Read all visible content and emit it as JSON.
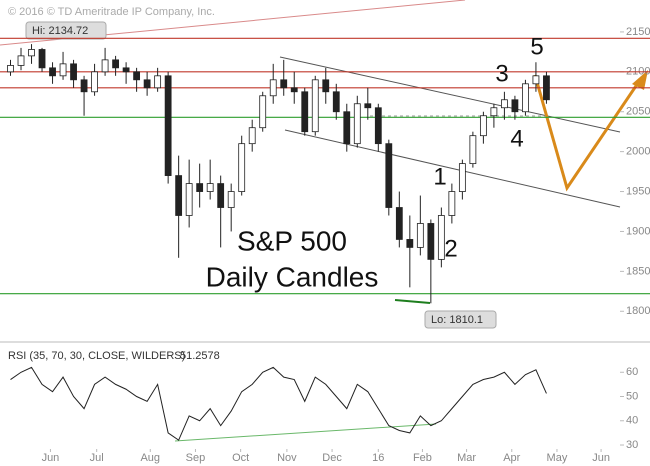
{
  "chart_data": {
    "type": "candlestick",
    "copyright": "© 2016 © TD Ameritrade IP Company, Inc.",
    "title_lines": [
      "S&P 500",
      "Daily Candles"
    ],
    "hi_label": "Hi: 2134.72",
    "lo_label": "Lo: 1810.1",
    "annotations": [
      "1",
      "2",
      "3",
      "4",
      "5"
    ],
    "x": [
      1,
      2,
      3,
      4,
      5,
      6,
      7,
      8,
      9,
      10,
      11,
      12,
      13,
      14,
      15,
      16,
      17,
      18,
      19,
      20,
      21,
      22,
      23,
      24,
      25,
      26,
      27,
      28,
      29,
      30,
      31,
      32,
      33,
      34,
      35,
      36,
      37,
      38,
      39,
      40,
      41,
      42,
      43,
      44,
      45,
      46,
      47,
      48,
      49,
      50,
      51,
      52
    ],
    "open": [
      2100,
      2108,
      2120,
      2128,
      2105,
      2095,
      2110,
      2090,
      2075,
      2100,
      2115,
      2105,
      2100,
      2090,
      2080,
      2095,
      1970,
      1920,
      1960,
      1950,
      1960,
      1930,
      1950,
      2010,
      2030,
      2070,
      2090,
      2080,
      2075,
      2025,
      2090,
      2075,
      2050,
      2010,
      2060,
      2055,
      2010,
      1930,
      1890,
      1880,
      1910,
      1865,
      1920,
      1950,
      1985,
      2020,
      2045,
      2055,
      2065,
      2050,
      2085,
      2095
    ],
    "high": [
      2115,
      2130,
      2134.72,
      2130,
      2112,
      2125,
      2115,
      2095,
      2110,
      2130,
      2120,
      2112,
      2105,
      2100,
      2105,
      2100,
      1995,
      1990,
      1985,
      1990,
      1970,
      1960,
      2020,
      2040,
      2075,
      2110,
      2115,
      2100,
      2080,
      2095,
      2105,
      2085,
      2060,
      2070,
      2080,
      2060,
      2015,
      1950,
      1920,
      1945,
      1915,
      1930,
      1960,
      1990,
      2025,
      2050,
      2060,
      2075,
      2070,
      2090,
      2112,
      2100
    ],
    "low": [
      2095,
      2102,
      2110,
      2100,
      2085,
      2090,
      2080,
      2045,
      2070,
      2095,
      2095,
      2085,
      2075,
      2070,
      2075,
      1960,
      1867,
      1905,
      1930,
      1940,
      1880,
      1900,
      1945,
      2000,
      2025,
      2060,
      2070,
      2060,
      2020,
      2020,
      2060,
      2040,
      2000,
      2005,
      2040,
      2000,
      1920,
      1880,
      1830,
      1870,
      1810,
      1855,
      1910,
      1940,
      1980,
      2010,
      2030,
      2040,
      2040,
      2045,
      2075,
      2060
    ],
    "close": [
      2108,
      2120,
      2128,
      2105,
      2095,
      2110,
      2090,
      2075,
      2100,
      2115,
      2105,
      2100,
      2090,
      2080,
      2095,
      1970,
      1920,
      1960,
      1950,
      1960,
      1930,
      1950,
      2010,
      2030,
      2070,
      2090,
      2080,
      2075,
      2025,
      2090,
      2075,
      2050,
      2010,
      2060,
      2055,
      2010,
      1930,
      1890,
      1880,
      1910,
      1865,
      1920,
      1950,
      1985,
      2020,
      2045,
      2055,
      2065,
      2050,
      2085,
      2095,
      2065
    ],
    "up_color": "#ffffff",
    "down_color": "#222222",
    "xlim": [
      0,
      59
    ],
    "ylim": [
      1764,
      2190
    ],
    "yticks": [
      1800,
      1850,
      1900,
      1950,
      2000,
      2050,
      2100,
      2150
    ],
    "xticks": [
      {
        "value": 4.8,
        "label": "Jun"
      },
      {
        "value": 9.2,
        "label": "Jul"
      },
      {
        "value": 14.3,
        "label": "Aug"
      },
      {
        "value": 18.6,
        "label": "Sep"
      },
      {
        "value": 22.9,
        "label": "Oct"
      },
      {
        "value": 27.3,
        "label": "Nov"
      },
      {
        "value": 31.6,
        "label": "Dec"
      },
      {
        "value": 36,
        "label": "16"
      },
      {
        "value": 40.2,
        "label": "Feb"
      },
      {
        "value": 44.4,
        "label": "Mar"
      },
      {
        "value": 48.7,
        "label": "Apr"
      },
      {
        "value": 53,
        "label": "May"
      },
      {
        "value": 57.2,
        "label": "Jun"
      }
    ],
    "hlines": [
      {
        "value": 2142,
        "color": "#c0392b"
      },
      {
        "value": 2100,
        "color": "#c0392b"
      },
      {
        "value": 2080,
        "color": "#c0392b"
      },
      {
        "value": 2043,
        "color": "#2e9e2e"
      },
      {
        "value": 1822,
        "color": "#2e9e2e"
      }
    ],
    "rsi": {
      "name": "RSI (35, 70, 30, CLOSE, WILDERS)",
      "color": "#222222",
      "values": [
        57,
        60,
        62,
        55,
        52,
        58,
        50,
        45,
        55,
        58,
        55,
        53,
        50,
        48,
        55,
        35,
        32,
        42,
        40,
        45,
        38,
        44,
        52,
        55,
        60,
        62,
        58,
        57,
        48,
        58,
        55,
        50,
        45,
        55,
        52,
        45,
        38,
        36,
        35,
        42,
        38,
        40,
        45,
        50,
        55,
        57,
        58,
        60,
        55,
        59,
        61,
        51.2578
      ],
      "ylim": [
        23,
        70
      ],
      "yticks": [
        30,
        40,
        50,
        60
      ]
    }
  }
}
